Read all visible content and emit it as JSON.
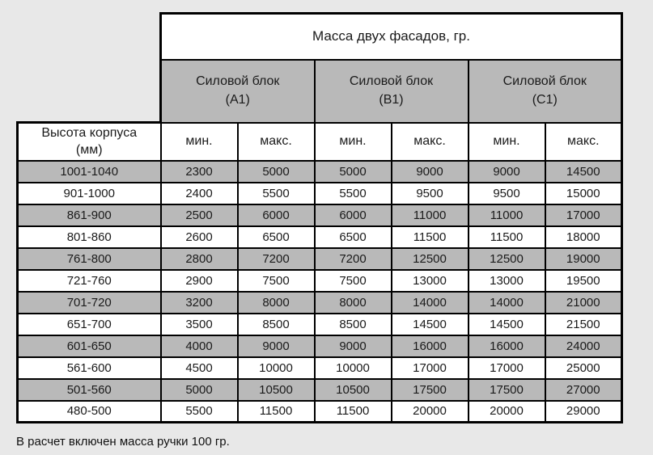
{
  "page": {
    "footnote": "В расчет включен масса ручки 100 гр."
  },
  "colors": {
    "page_background": "#e8e8e8",
    "stripe_gray": "#b9b9b9",
    "cell_white": "#ffffff",
    "border": "#000000"
  },
  "table": {
    "title": "Масса двух фасадов, гр.",
    "row_header": {
      "line1": "Высота корпуса",
      "line2": "(мм)"
    },
    "column_groups": [
      {
        "line1": "Силовой блок",
        "line2": "(А1)"
      },
      {
        "line1": "Силовой блок",
        "line2": "(В1)"
      },
      {
        "line1": "Силовой блок",
        "line2": "(С1)"
      }
    ],
    "subheaders": [
      "мин.",
      "макс.",
      "мин.",
      "макс.",
      "мин.",
      "макс."
    ],
    "rows": [
      {
        "height": "1001-1040",
        "values": [
          "2300",
          "5000",
          "5000",
          "9000",
          "9000",
          "14500"
        ]
      },
      {
        "height": "901-1000",
        "values": [
          "2400",
          "5500",
          "5500",
          "9500",
          "9500",
          "15000"
        ]
      },
      {
        "height": "861-900",
        "values": [
          "2500",
          "6000",
          "6000",
          "11000",
          "11000",
          "17000"
        ]
      },
      {
        "height": "801-860",
        "values": [
          "2600",
          "6500",
          "6500",
          "11500",
          "11500",
          "18000"
        ]
      },
      {
        "height": "761-800",
        "values": [
          "2800",
          "7200",
          "7200",
          "12500",
          "12500",
          "19000"
        ]
      },
      {
        "height": "721-760",
        "values": [
          "2900",
          "7500",
          "7500",
          "13000",
          "13000",
          "19500"
        ]
      },
      {
        "height": "701-720",
        "values": [
          "3200",
          "8000",
          "8000",
          "14000",
          "14000",
          "21000"
        ]
      },
      {
        "height": "651-700",
        "values": [
          "3500",
          "8500",
          "8500",
          "14500",
          "14500",
          "21500"
        ]
      },
      {
        "height": "601-650",
        "values": [
          "4000",
          "9000",
          "9000",
          "16000",
          "16000",
          "24000"
        ]
      },
      {
        "height": "561-600",
        "values": [
          "4500",
          "10000",
          "10000",
          "17000",
          "17000",
          "25000"
        ]
      },
      {
        "height": "501-560",
        "values": [
          "5000",
          "10500",
          "10500",
          "17500",
          "17500",
          "27000"
        ]
      },
      {
        "height": "480-500",
        "values": [
          "5500",
          "11500",
          "11500",
          "20000",
          "20000",
          "29000"
        ]
      }
    ]
  }
}
